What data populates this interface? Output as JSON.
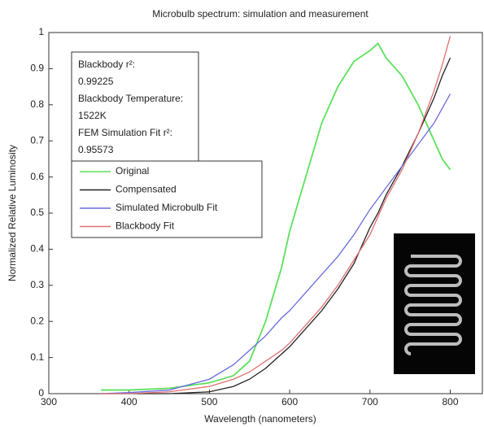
{
  "chart_data": {
    "type": "line",
    "title": "Microbulb spectrum: simulation and measurement",
    "xlabel": "Wavelength (nanometers)",
    "ylabel": "Normalized Relative Luminosity",
    "annotation": [
      "Blackbody r²:",
      "0.99225",
      "Blackbody Temperature:",
      "1522K",
      "FEM Simulation Fit r²:",
      "0.95573"
    ],
    "x": [
      365,
      400,
      450,
      500,
      530,
      550,
      570,
      590,
      600,
      620,
      640,
      660,
      680,
      700,
      710,
      720,
      740,
      760,
      780,
      790,
      800
    ],
    "series": [
      {
        "name": "Original",
        "color": "#5de05d",
        "values": [
          0.01,
          0.01,
          0.015,
          0.03,
          0.05,
          0.09,
          0.2,
          0.35,
          0.45,
          0.6,
          0.75,
          0.85,
          0.92,
          0.95,
          0.97,
          0.93,
          0.88,
          0.8,
          0.7,
          0.65,
          0.62
        ]
      },
      {
        "name": "Compensated",
        "color": "#222222",
        "values": [
          0,
          0,
          0,
          0.005,
          0.02,
          0.04,
          0.07,
          0.11,
          0.13,
          0.18,
          0.23,
          0.29,
          0.36,
          0.46,
          0.5,
          0.55,
          0.63,
          0.72,
          0.82,
          0.88,
          0.93
        ]
      },
      {
        "name": "Simulated Microbulb Fit",
        "color": "#6a6ae0",
        "values": [
          0,
          0.003,
          0.01,
          0.04,
          0.08,
          0.12,
          0.16,
          0.21,
          0.23,
          0.28,
          0.33,
          0.38,
          0.44,
          0.51,
          0.54,
          0.57,
          0.63,
          0.69,
          0.75,
          0.79,
          0.83
        ]
      },
      {
        "name": "Blackbody Fit",
        "color": "#e07070",
        "values": [
          0,
          0,
          0.005,
          0.02,
          0.04,
          0.06,
          0.09,
          0.12,
          0.14,
          0.19,
          0.24,
          0.3,
          0.37,
          0.44,
          0.49,
          0.54,
          0.62,
          0.72,
          0.84,
          0.91,
          0.99
        ]
      }
    ],
    "xlim": [
      300,
      840
    ],
    "ylim": [
      0,
      1
    ],
    "xticks": [
      300,
      400,
      500,
      600,
      700,
      800
    ],
    "yticks": [
      0,
      0.1,
      0.2,
      0.3,
      0.4,
      0.5,
      0.6,
      0.7,
      0.8,
      0.9,
      1
    ]
  }
}
